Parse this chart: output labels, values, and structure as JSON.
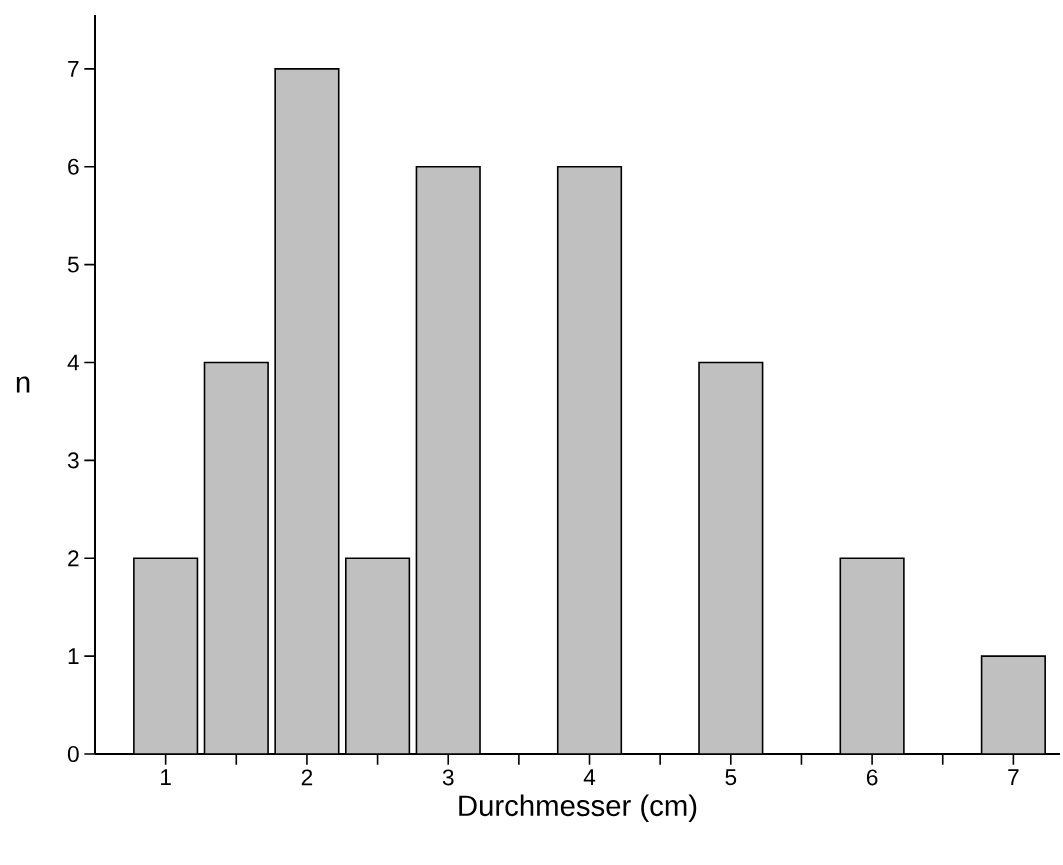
{
  "chart_data": {
    "type": "bar",
    "xlabel": "Durchmesser (cm)",
    "ylabel": "n",
    "x": [
      1,
      1.5,
      2,
      2.5,
      3,
      4,
      5,
      6,
      7
    ],
    "values": [
      2,
      4,
      7,
      2,
      6,
      6,
      4,
      2,
      1
    ],
    "color": "#c0c0c0",
    "xlim": [
      0.5,
      7.33
    ],
    "ylim": [
      0,
      7.55
    ],
    "xticks": [
      1,
      {
        "value": 1.5,
        "label": null
      },
      2,
      {
        "value": 2.5,
        "label": null
      },
      3,
      {
        "value": 3.5,
        "label": null
      },
      4,
      {
        "value": 4.5,
        "label": null
      },
      5,
      {
        "value": 5.5,
        "label": null
      },
      6,
      {
        "value": 6.5,
        "label": null
      },
      7
    ],
    "yticks": [
      0,
      1,
      2,
      3,
      4,
      5,
      6,
      7
    ],
    "grid": false
  }
}
